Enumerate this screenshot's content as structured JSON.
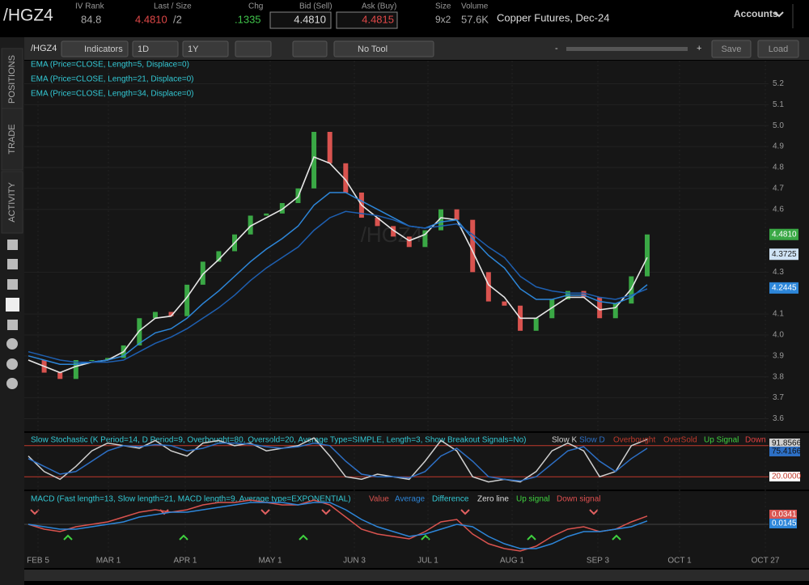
{
  "header": {
    "symbol": "/HGZ4",
    "iv_rank_label": "IV Rank",
    "iv_rank": "84.8",
    "last_label": "Last / Size",
    "last": "4.4810",
    "last_size": "/2",
    "chg_label": "Chg",
    "chg": ".1335",
    "bid_label": "Bid (Sell)",
    "bid": "4.4810",
    "ask_label": "Ask (Buy)",
    "ask": "4.4815",
    "size_label": "Size",
    "size": "9x2",
    "volume_label": "Volume",
    "volume": "57.6K",
    "description": "Copper Futures, Dec-24",
    "accounts": "Accounts"
  },
  "toolbar": {
    "symbol": "/HGZ4",
    "indicators": "Indicators",
    "period": "1D",
    "range": "1Y",
    "tool": "No Tool",
    "minus": "-",
    "plus": "+",
    "save": "Save",
    "load": "Load"
  },
  "sidebar": {
    "tabs": [
      "POSITIONS",
      "TRADE",
      "ACTIVITY"
    ]
  },
  "chart_data": {
    "type": "candlestick",
    "x_labels": [
      "FEB 5",
      "MAR 1",
      "APR 1",
      "MAY 1",
      "JUN 3",
      "JUL 1",
      "AUG 1",
      "SEP 3",
      "OCT 1",
      "OCT 27"
    ],
    "ylim": [
      3.54,
      5.31
    ],
    "yticks": [
      3.6,
      3.7,
      3.8,
      3.9,
      {
        "value": 4,
        "label": "4.0"
      },
      4.1,
      4.3,
      4.6,
      4.7,
      4.8,
      4.9,
      {
        "value": 5,
        "label": "5.0"
      },
      5.1,
      5.2
    ],
    "up_color": "#3aa845",
    "down_color": "#d9534f",
    "close": [
      3.88,
      3.82,
      3.79,
      3.88,
      3.88,
      3.89,
      3.95,
      4.08,
      4.11,
      4.09,
      4.24,
      4.35,
      4.4,
      4.48,
      4.57,
      4.58,
      4.63,
      4.7,
      4.97,
      4.82,
      4.68,
      4.56,
      4.52,
      4.47,
      4.42,
      4.5,
      4.6,
      4.55,
      4.3,
      4.16,
      4.14,
      4.02,
      4.08,
      4.17,
      4.21,
      4.18,
      4.08,
      4.15,
      4.28,
      4.48
    ],
    "series": [
      {
        "name": "EMA (Price=CLOSE, Length=5, Displace=0)",
        "color": "#e6e6e6",
        "values": [
          3.88,
          3.85,
          3.82,
          3.85,
          3.87,
          3.88,
          3.92,
          4.02,
          4.08,
          4.09,
          4.18,
          4.29,
          4.36,
          4.44,
          4.52,
          4.56,
          4.6,
          4.66,
          4.85,
          4.82,
          4.74,
          4.62,
          4.56,
          4.5,
          4.45,
          4.48,
          4.56,
          4.55,
          4.4,
          4.24,
          4.18,
          4.08,
          4.08,
          4.13,
          4.18,
          4.18,
          4.12,
          4.13,
          4.22,
          4.37
        ]
      },
      {
        "name": "EMA (Price=CLOSE, Length=21, Displace=0)",
        "color": "#2d86d9",
        "values": [
          3.9,
          3.88,
          3.86,
          3.86,
          3.87,
          3.88,
          3.9,
          3.96,
          4.01,
          4.03,
          4.08,
          4.15,
          4.21,
          4.28,
          4.35,
          4.41,
          4.46,
          4.52,
          4.62,
          4.68,
          4.68,
          4.64,
          4.6,
          4.56,
          4.52,
          4.51,
          4.54,
          4.55,
          4.46,
          4.38,
          4.32,
          4.22,
          4.17,
          4.17,
          4.19,
          4.19,
          4.16,
          4.15,
          4.18,
          4.24
        ]
      },
      {
        "name": "EMA (Price=CLOSE, Length=34, Displace=0)",
        "color": "#1e5fb0",
        "values": [
          3.92,
          3.9,
          3.88,
          3.87,
          3.87,
          3.87,
          3.88,
          3.92,
          3.96,
          3.99,
          4.03,
          4.08,
          4.13,
          4.19,
          4.26,
          4.32,
          4.37,
          4.42,
          4.5,
          4.56,
          4.59,
          4.58,
          4.57,
          4.55,
          4.52,
          4.51,
          4.52,
          4.53,
          4.48,
          4.42,
          4.37,
          4.28,
          4.23,
          4.21,
          4.2,
          4.2,
          4.18,
          4.17,
          4.19,
          4.22
        ]
      }
    ],
    "price_tags": [
      {
        "label": "4.4810",
        "color": "#3aa845"
      },
      {
        "label": "4.3725",
        "color": "#cfe3f5"
      },
      {
        "label": "4.2445",
        "color": "#2d86d9"
      }
    ],
    "stochastic": {
      "title": "Slow Stochastic (K Period=14, D Period=9, Overbought=80, Oversold=20, Average Type=SIMPLE, Length=3, Show Breakout Signals=No)",
      "ylim": [
        0,
        100
      ],
      "levels": [
        80,
        20
      ],
      "level_color": "#c0392b",
      "series": [
        {
          "name": "Slow K",
          "color": "#cfcfcf",
          "values": [
            60,
            30,
            15,
            40,
            70,
            85,
            80,
            75,
            90,
            70,
            60,
            85,
            90,
            80,
            85,
            70,
            75,
            80,
            95,
            60,
            20,
            15,
            25,
            20,
            15,
            50,
            90,
            70,
            20,
            10,
            15,
            10,
            30,
            70,
            85,
            70,
            20,
            30,
            80,
            92
          ]
        },
        {
          "name": "Slow D",
          "color": "#2d6fc4",
          "values": [
            55,
            40,
            25,
            30,
            50,
            70,
            80,
            78,
            82,
            80,
            70,
            75,
            85,
            85,
            83,
            78,
            75,
            78,
            85,
            80,
            50,
            25,
            20,
            20,
            18,
            30,
            60,
            75,
            50,
            20,
            15,
            12,
            20,
            45,
            70,
            78,
            50,
            30,
            55,
            75
          ]
        }
      ],
      "legend_extra": [
        {
          "label": "Overbought",
          "color": "#c0392b"
        },
        {
          "label": "OverSold",
          "color": "#c0392b"
        },
        {
          "label": "Up Signal",
          "color": "#3fd13f"
        },
        {
          "label": "Down",
          "color": "#e04040"
        }
      ],
      "tags": [
        {
          "label": "91.8566",
          "color": "#cfcfcf"
        },
        {
          "label": "75.4166",
          "color": "#2d6fc4"
        },
        {
          "label": "20.0000",
          "color": "#c0392b"
        }
      ]
    },
    "macd": {
      "title": "MACD (Fast length=13, Slow length=21, MACD length=9, Average type=EXPONENTIAL)",
      "ylim": [
        -0.12,
        0.12
      ],
      "series": [
        {
          "name": "Value",
          "color": "#d9534f",
          "values": [
            0,
            -0.02,
            -0.03,
            -0.01,
            0,
            0.01,
            0.03,
            0.05,
            0.06,
            0.05,
            0.06,
            0.08,
            0.09,
            0.09,
            0.1,
            0.09,
            0.08,
            0.08,
            0.1,
            0.08,
            0.03,
            -0.02,
            -0.04,
            -0.05,
            -0.06,
            -0.03,
            0.01,
            0.02,
            -0.04,
            -0.08,
            -0.1,
            -0.11,
            -0.09,
            -0.05,
            -0.02,
            -0.01,
            -0.03,
            -0.02,
            0.01,
            0.034
          ]
        },
        {
          "name": "Average",
          "color": "#2d86d9",
          "values": [
            0,
            -0.01,
            -0.02,
            -0.02,
            -0.01,
            0,
            0.01,
            0.03,
            0.04,
            0.05,
            0.05,
            0.06,
            0.07,
            0.08,
            0.09,
            0.09,
            0.09,
            0.08,
            0.09,
            0.09,
            0.06,
            0.02,
            -0.01,
            -0.03,
            -0.05,
            -0.04,
            -0.02,
            0,
            -0.01,
            -0.05,
            -0.08,
            -0.1,
            -0.1,
            -0.08,
            -0.05,
            -0.03,
            -0.03,
            -0.02,
            -0.01,
            0.014
          ]
        }
      ],
      "legend_extra": [
        {
          "label": "Difference",
          "color": "#33c8d4"
        },
        {
          "label": "Zero line",
          "color": "#dddddd"
        },
        {
          "label": "Up signal",
          "color": "#3fd13f"
        },
        {
          "label": "Down signal",
          "color": "#e05050"
        }
      ],
      "tags": [
        {
          "label": "0.0341",
          "color": "#d9534f"
        },
        {
          "label": "0.0145",
          "color": "#2d86d9"
        }
      ]
    }
  }
}
